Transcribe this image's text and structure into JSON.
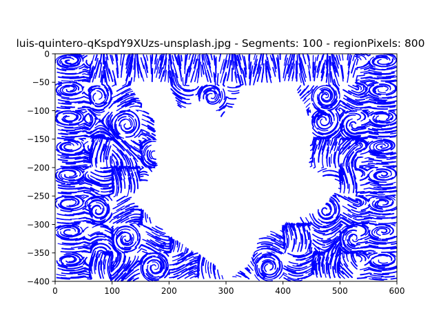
{
  "figure": {
    "title": "luis-quintero-qKspdY9XUzs-unsplash.jpg - Segments: 100 - regionPixels: 800"
  },
  "chart_data": {
    "type": "streamplot",
    "title": "luis-quintero-qKspdY9XUzs-unsplash.jpg - Segments: 100 - regionPixels: 800",
    "xlabel": "",
    "ylabel": "",
    "xlim": [
      0,
      600
    ],
    "ylim": [
      -400,
      0
    ],
    "x_ticks": [
      0,
      100,
      200,
      300,
      400,
      500,
      600
    ],
    "x_tick_labels": [
      "0",
      "100",
      "200",
      "300",
      "400",
      "500",
      "600"
    ],
    "y_ticks": [
      0,
      -50,
      -100,
      -150,
      -200,
      -250,
      -300,
      -350,
      -400
    ],
    "y_tick_labels": [
      "0",
      "−50",
      "−100",
      "−150",
      "−200",
      "−250",
      "−300",
      "−350",
      "−400"
    ],
    "grid": false,
    "line_color": "#0000ff",
    "blank_region": [
      [
        130,
        -55
      ],
      [
        200,
        -55
      ],
      [
        220,
        -100
      ],
      [
        260,
        -80
      ],
      [
        300,
        -120
      ],
      [
        330,
        -55
      ],
      [
        420,
        -55
      ],
      [
        450,
        -120
      ],
      [
        440,
        -200
      ],
      [
        500,
        -230
      ],
      [
        470,
        -270
      ],
      [
        400,
        -300
      ],
      [
        360,
        -320
      ],
      [
        340,
        -370
      ],
      [
        300,
        -400
      ],
      [
        280,
        -370
      ],
      [
        250,
        -350
      ],
      [
        200,
        -320
      ],
      [
        150,
        -270
      ],
      [
        130,
        -255
      ],
      [
        150,
        -240
      ],
      [
        180,
        -200
      ],
      [
        175,
        -120
      ]
    ]
  }
}
